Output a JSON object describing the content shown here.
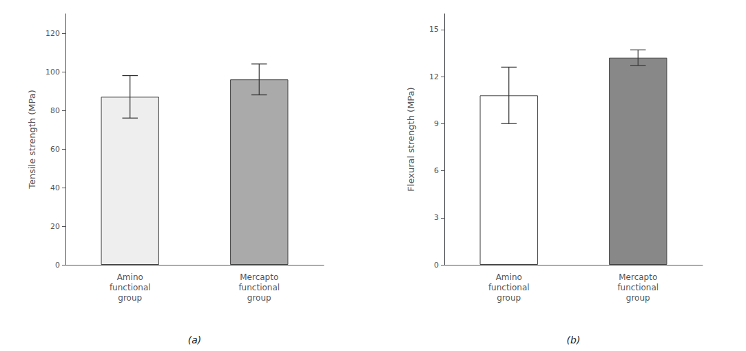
{
  "chart_data": [
    {
      "type": "bar",
      "title": "(a)",
      "categories": [
        "Amino\nfunctional\ngroup",
        "Mercapto\nfunctional\ngroup"
      ],
      "values": [
        87,
        96
      ],
      "errors": [
        11,
        8
      ],
      "colors": [
        "#eeeeee",
        "#aaaaaa"
      ],
      "ylabel": "Tensile strength (MPa)",
      "ylim": [
        0,
        130
      ],
      "yticks": [
        0,
        20,
        40,
        60,
        80,
        100,
        120
      ],
      "grid": false
    },
    {
      "type": "bar",
      "title": "(b)",
      "categories": [
        "Amino\nfunctional\ngroup",
        "Mercapto\nfunctional\ngroup"
      ],
      "values": [
        10.8,
        13.2
      ],
      "errors": [
        1.8,
        0.5
      ],
      "colors": [
        "#ffffff",
        "#888888"
      ],
      "ylabel": "Flexural strength (MPa)",
      "ylim": [
        0,
        16
      ],
      "yticks": [
        0,
        3,
        6,
        9,
        12,
        15
      ],
      "grid": false
    }
  ]
}
